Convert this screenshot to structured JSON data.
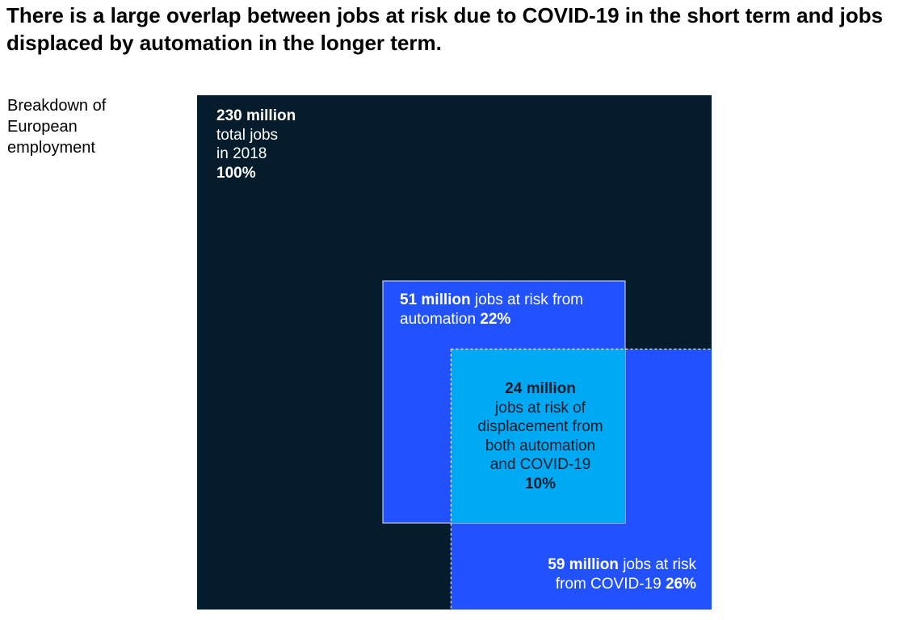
{
  "headline": "There is a large overlap between jobs at risk due to COVID-19 in the short term and jobs displaced by automation in the longer term.",
  "side_label": "Breakdown of European employment",
  "colors": {
    "total": "#051c2c",
    "automation": "#2251ff",
    "covid": "#2251ff",
    "overlap": "#00a9f4",
    "label_light": "#ffffff",
    "label_dark": "#051c2c"
  },
  "chart_data": {
    "type": "area-proportional squares",
    "unit": "million jobs",
    "sets": [
      {
        "id": "total",
        "value_label": "230 million",
        "desc_line1": "total jobs",
        "desc_line2": "in 2018",
        "value": 230,
        "share_label": "100%",
        "share": 100
      },
      {
        "id": "automation",
        "value_label": "51 million",
        "desc_a": "jobs at risk from",
        "desc_b": "automation",
        "value": 51,
        "share_label": "22%",
        "share": 22
      },
      {
        "id": "covid",
        "value_label": "59 million",
        "desc_a": "jobs at risk",
        "desc_b": "from COVID-19",
        "value": 59,
        "share_label": "26%",
        "share": 26
      },
      {
        "id": "overlap",
        "value_label": "24 million",
        "desc_lines": [
          "jobs at risk of",
          "displacement from",
          "both automation",
          "and COVID-19"
        ],
        "value": 24,
        "share_label": "10%",
        "share": 10
      }
    ]
  }
}
